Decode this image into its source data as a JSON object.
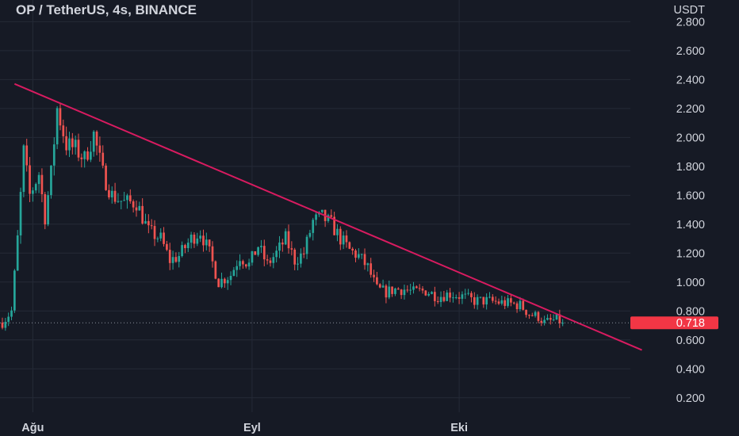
{
  "header": {
    "title": "OP / TetherUS, 4s, BINANCE"
  },
  "colors": {
    "background": "#161a25",
    "grid": "#252a37",
    "axis_text": "#d1d4dc",
    "up": "#26a69a",
    "down": "#ef5350",
    "trendline": "#d81b60",
    "price_tag_bg": "#f23645",
    "price_tag_text": "#ffffff"
  },
  "chart_data": {
    "type": "candlestick",
    "symbol": "OP / TetherUS",
    "interval": "4s",
    "exchange": "BINANCE",
    "y_axis_unit": "USDT",
    "y_ticks": [
      "2.800",
      "2.600",
      "2.400",
      "2.200",
      "2.000",
      "1.800",
      "1.600",
      "1.400",
      "1.200",
      "1.000",
      "0.800",
      "0.600",
      "0.400",
      "0.200"
    ],
    "y_tick_values": [
      2.8,
      2.6,
      2.4,
      2.2,
      2.0,
      1.8,
      1.6,
      1.4,
      1.2,
      1.0,
      0.8,
      0.6,
      0.4,
      0.2
    ],
    "ylim": [
      0.1,
      2.95
    ],
    "x_ticks": [
      "Ağu",
      "Eyl",
      "Eki"
    ],
    "x_tick_index": [
      10,
      82,
      150
    ],
    "total_bars": 185,
    "last_price": "0.718",
    "last_price_value": 0.718,
    "trendline": {
      "start": {
        "bar": 4,
        "price": 2.37
      },
      "end": {
        "bar": 210,
        "price": 0.53
      }
    },
    "price_anchors": [
      [
        0,
        0.72
      ],
      [
        3,
        0.8
      ],
      [
        5,
        1.3
      ],
      [
        7,
        1.9
      ],
      [
        9,
        1.6
      ],
      [
        12,
        1.75
      ],
      [
        14,
        1.45
      ],
      [
        16,
        1.75
      ],
      [
        18,
        2.2
      ],
      [
        21,
        1.95
      ],
      [
        24,
        1.92
      ],
      [
        27,
        1.85
      ],
      [
        30,
        2.02
      ],
      [
        33,
        1.75
      ],
      [
        36,
        1.6
      ],
      [
        40,
        1.55
      ],
      [
        44,
        1.55
      ],
      [
        48,
        1.35
      ],
      [
        52,
        1.3
      ],
      [
        55,
        1.15
      ],
      [
        58,
        1.18
      ],
      [
        62,
        1.3
      ],
      [
        65,
        1.35
      ],
      [
        68,
        1.2
      ],
      [
        71,
        1.0
      ],
      [
        75,
        1.05
      ],
      [
        78,
        1.18
      ],
      [
        81,
        1.12
      ],
      [
        84,
        1.25
      ],
      [
        87,
        1.12
      ],
      [
        90,
        1.2
      ],
      [
        93,
        1.3
      ],
      [
        96,
        1.15
      ],
      [
        99,
        1.2
      ],
      [
        102,
        1.42
      ],
      [
        105,
        1.45
      ],
      [
        108,
        1.4
      ],
      [
        111,
        1.3
      ],
      [
        114,
        1.22
      ],
      [
        117,
        1.18
      ],
      [
        120,
        1.1
      ],
      [
        123,
        0.95
      ],
      [
        126,
        0.93
      ],
      [
        129,
        0.95
      ],
      [
        132,
        0.95
      ],
      [
        135,
        0.93
      ],
      [
        139,
        0.94
      ],
      [
        143,
        0.9
      ],
      [
        147,
        0.92
      ],
      [
        151,
        0.9
      ],
      [
        155,
        0.87
      ],
      [
        159,
        0.87
      ],
      [
        163,
        0.86
      ],
      [
        167,
        0.85
      ],
      [
        170,
        0.84
      ],
      [
        173,
        0.78
      ],
      [
        176,
        0.76
      ],
      [
        178,
        0.72
      ],
      [
        180,
        0.73
      ],
      [
        182,
        0.74
      ],
      [
        184,
        0.718
      ]
    ]
  }
}
